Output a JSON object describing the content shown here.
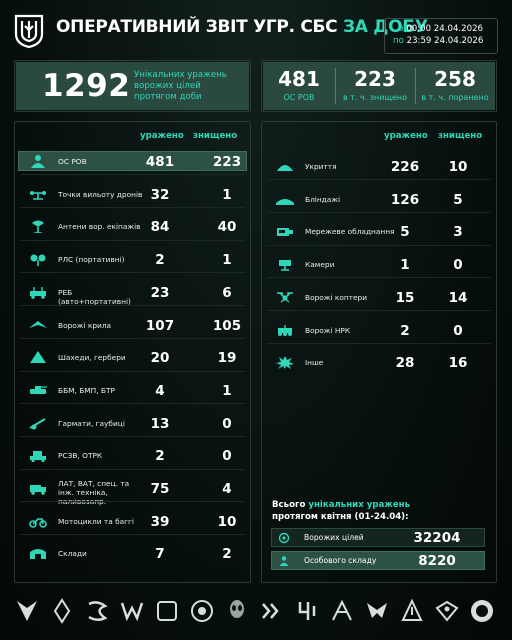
{
  "header": {
    "title_main": "ОПЕРАТИВНИЙ ЗВІТ УГР. СБС",
    "title_accent": "ЗА ДОБУ",
    "from_label": "з",
    "from_value": "00:00 24.04.2026",
    "to_label": "по",
    "to_value": "23:59 24.04.2026"
  },
  "totals": {
    "unique_hits": "1292",
    "unique_hits_desc": "Унікальних уражень ворожих цілей протягом доби"
  },
  "personnel_summary": [
    {
      "value": "481",
      "label": "ОС РОВ"
    },
    {
      "value": "223",
      "label": "в т. ч. знищено"
    },
    {
      "value": "258",
      "label": "в т. ч. поранено"
    }
  ],
  "left_table": {
    "col_hit": "уражено",
    "col_destroyed": "знищено",
    "rows": [
      {
        "icon": "soldier-icon",
        "label": "ОС РОВ",
        "hit": "481",
        "destroyed": "223",
        "highlight": true
      },
      {
        "icon": "drone-launch-point-icon",
        "label": "Точки вильоту дронів",
        "hit": "32",
        "destroyed": "1"
      },
      {
        "icon": "antenna-icon",
        "label": "Антени вор. екіпажів",
        "hit": "84",
        "destroyed": "40"
      },
      {
        "icon": "radio-station-icon",
        "label": "РЛС (портативні)",
        "hit": "2",
        "destroyed": "1"
      },
      {
        "icon": "ew-vehicle-icon",
        "label": "РЕБ (авто+портативні)",
        "hit": "23",
        "destroyed": "6"
      },
      {
        "icon": "wing-icon",
        "label": "Ворожі крила",
        "hit": "107",
        "destroyed": "105"
      },
      {
        "icon": "shahed-icon",
        "label": "Шахеди, гербери",
        "hit": "20",
        "destroyed": "19"
      },
      {
        "icon": "ifv-icon",
        "label": "ББМ, БМП, БТР",
        "hit": "4",
        "destroyed": "1"
      },
      {
        "icon": "howitzer-icon",
        "label": "Гармати, гаубиці",
        "hit": "13",
        "destroyed": "0"
      },
      {
        "icon": "mlrs-icon",
        "label": "РСЗВ, ОТРК",
        "hit": "2",
        "destroyed": "0"
      },
      {
        "icon": "truck-icon",
        "label": "ЛАТ, ВАТ, спец. та інж. техніка, паливозапр.",
        "hit": "75",
        "destroyed": "4"
      },
      {
        "icon": "motorcycle-icon",
        "label": "Мотоцикли та баггі",
        "hit": "39",
        "destroyed": "10"
      },
      {
        "icon": "warehouse-icon",
        "label": "Склади",
        "hit": "7",
        "destroyed": "2"
      }
    ]
  },
  "right_table": {
    "col_hit": "уражено",
    "col_destroyed": "знищено",
    "rows": [
      {
        "icon": "shelter-icon",
        "label": "Укриття",
        "hit": "226",
        "destroyed": "10"
      },
      {
        "icon": "bunker-icon",
        "label": "Бліндажі",
        "hit": "126",
        "destroyed": "5"
      },
      {
        "icon": "network-equipment-icon",
        "label": "Мережеве обладнання",
        "hit": "5",
        "destroyed": "3"
      },
      {
        "icon": "camera-icon",
        "label": "Камери",
        "hit": "1",
        "destroyed": "0"
      },
      {
        "icon": "copter-icon",
        "label": "Ворожі коптери",
        "hit": "15",
        "destroyed": "14"
      },
      {
        "icon": "ugv-icon",
        "label": "Ворожі НРК",
        "hit": "2",
        "destroyed": "0"
      },
      {
        "icon": "explosion-icon",
        "label": "Інше",
        "hit": "28",
        "destroyed": "16"
      }
    ]
  },
  "monthly": {
    "title_pre": "Всього",
    "title_accent": "унікальних уражень",
    "title_line2": "протягом квітня (01-24.04):",
    "rows": [
      {
        "icon": "target-icon",
        "label": "Ворожих цілей",
        "value": "32204"
      },
      {
        "icon": "personnel-icon",
        "label": "Особового складу",
        "value": "8220"
      }
    ]
  },
  "footer_units": [
    "unit-emblem-1-icon",
    "unit-emblem-2-icon",
    "unit-emblem-3-icon",
    "unit-emblem-4-icon",
    "unit-emblem-5-icon",
    "unit-emblem-6-icon",
    "unit-emblem-7-icon",
    "unit-emblem-8-icon",
    "unit-emblem-9-icon",
    "unit-emblem-10-icon",
    "unit-emblem-11-icon",
    "unit-emblem-12-icon",
    "unit-emblem-13-icon",
    "unit-emblem-14-icon"
  ],
  "colors": {
    "accent": "#2fd6b8",
    "highlight": "#2d5244",
    "background": "#07100e"
  }
}
